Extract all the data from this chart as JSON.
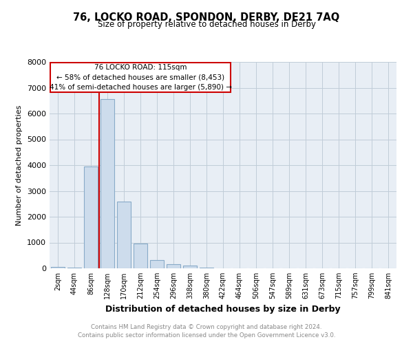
{
  "title": "76, LOCKO ROAD, SPONDON, DERBY, DE21 7AQ",
  "subtitle": "Size of property relative to detached houses in Derby",
  "xlabel": "Distribution of detached houses by size in Derby",
  "ylabel": "Number of detached properties",
  "footnote": "Contains HM Land Registry data © Crown copyright and database right 2024.\nContains public sector information licensed under the Open Government Licence v3.0.",
  "bin_labels": [
    "2sqm",
    "44sqm",
    "86sqm",
    "128sqm",
    "170sqm",
    "212sqm",
    "254sqm",
    "296sqm",
    "338sqm",
    "380sqm",
    "422sqm",
    "464sqm",
    "506sqm",
    "547sqm",
    "589sqm",
    "631sqm",
    "673sqm",
    "715sqm",
    "757sqm",
    "799sqm",
    "841sqm"
  ],
  "bar_values": [
    50,
    30,
    3950,
    6550,
    2600,
    950,
    330,
    150,
    100,
    30,
    0,
    0,
    0,
    0,
    0,
    0,
    0,
    0,
    0,
    0,
    0
  ],
  "bar_color": "#cddcec",
  "bar_edge_color": "#88aac8",
  "red_line_x": 2.5,
  "red_line_label": "76 LOCKO ROAD: 115sqm",
  "annotation_line1": "← 58% of detached houses are smaller (8,453)",
  "annotation_line2": "41% of semi-detached houses are larger (5,890) →",
  "annotation_box_color": "#ffffff",
  "annotation_box_edge": "#cc0000",
  "ylim": [
    0,
    8000
  ],
  "yticks": [
    0,
    1000,
    2000,
    3000,
    4000,
    5000,
    6000,
    7000,
    8000
  ],
  "grid_color": "#c0ccd8",
  "background_color": "#e8eef5"
}
